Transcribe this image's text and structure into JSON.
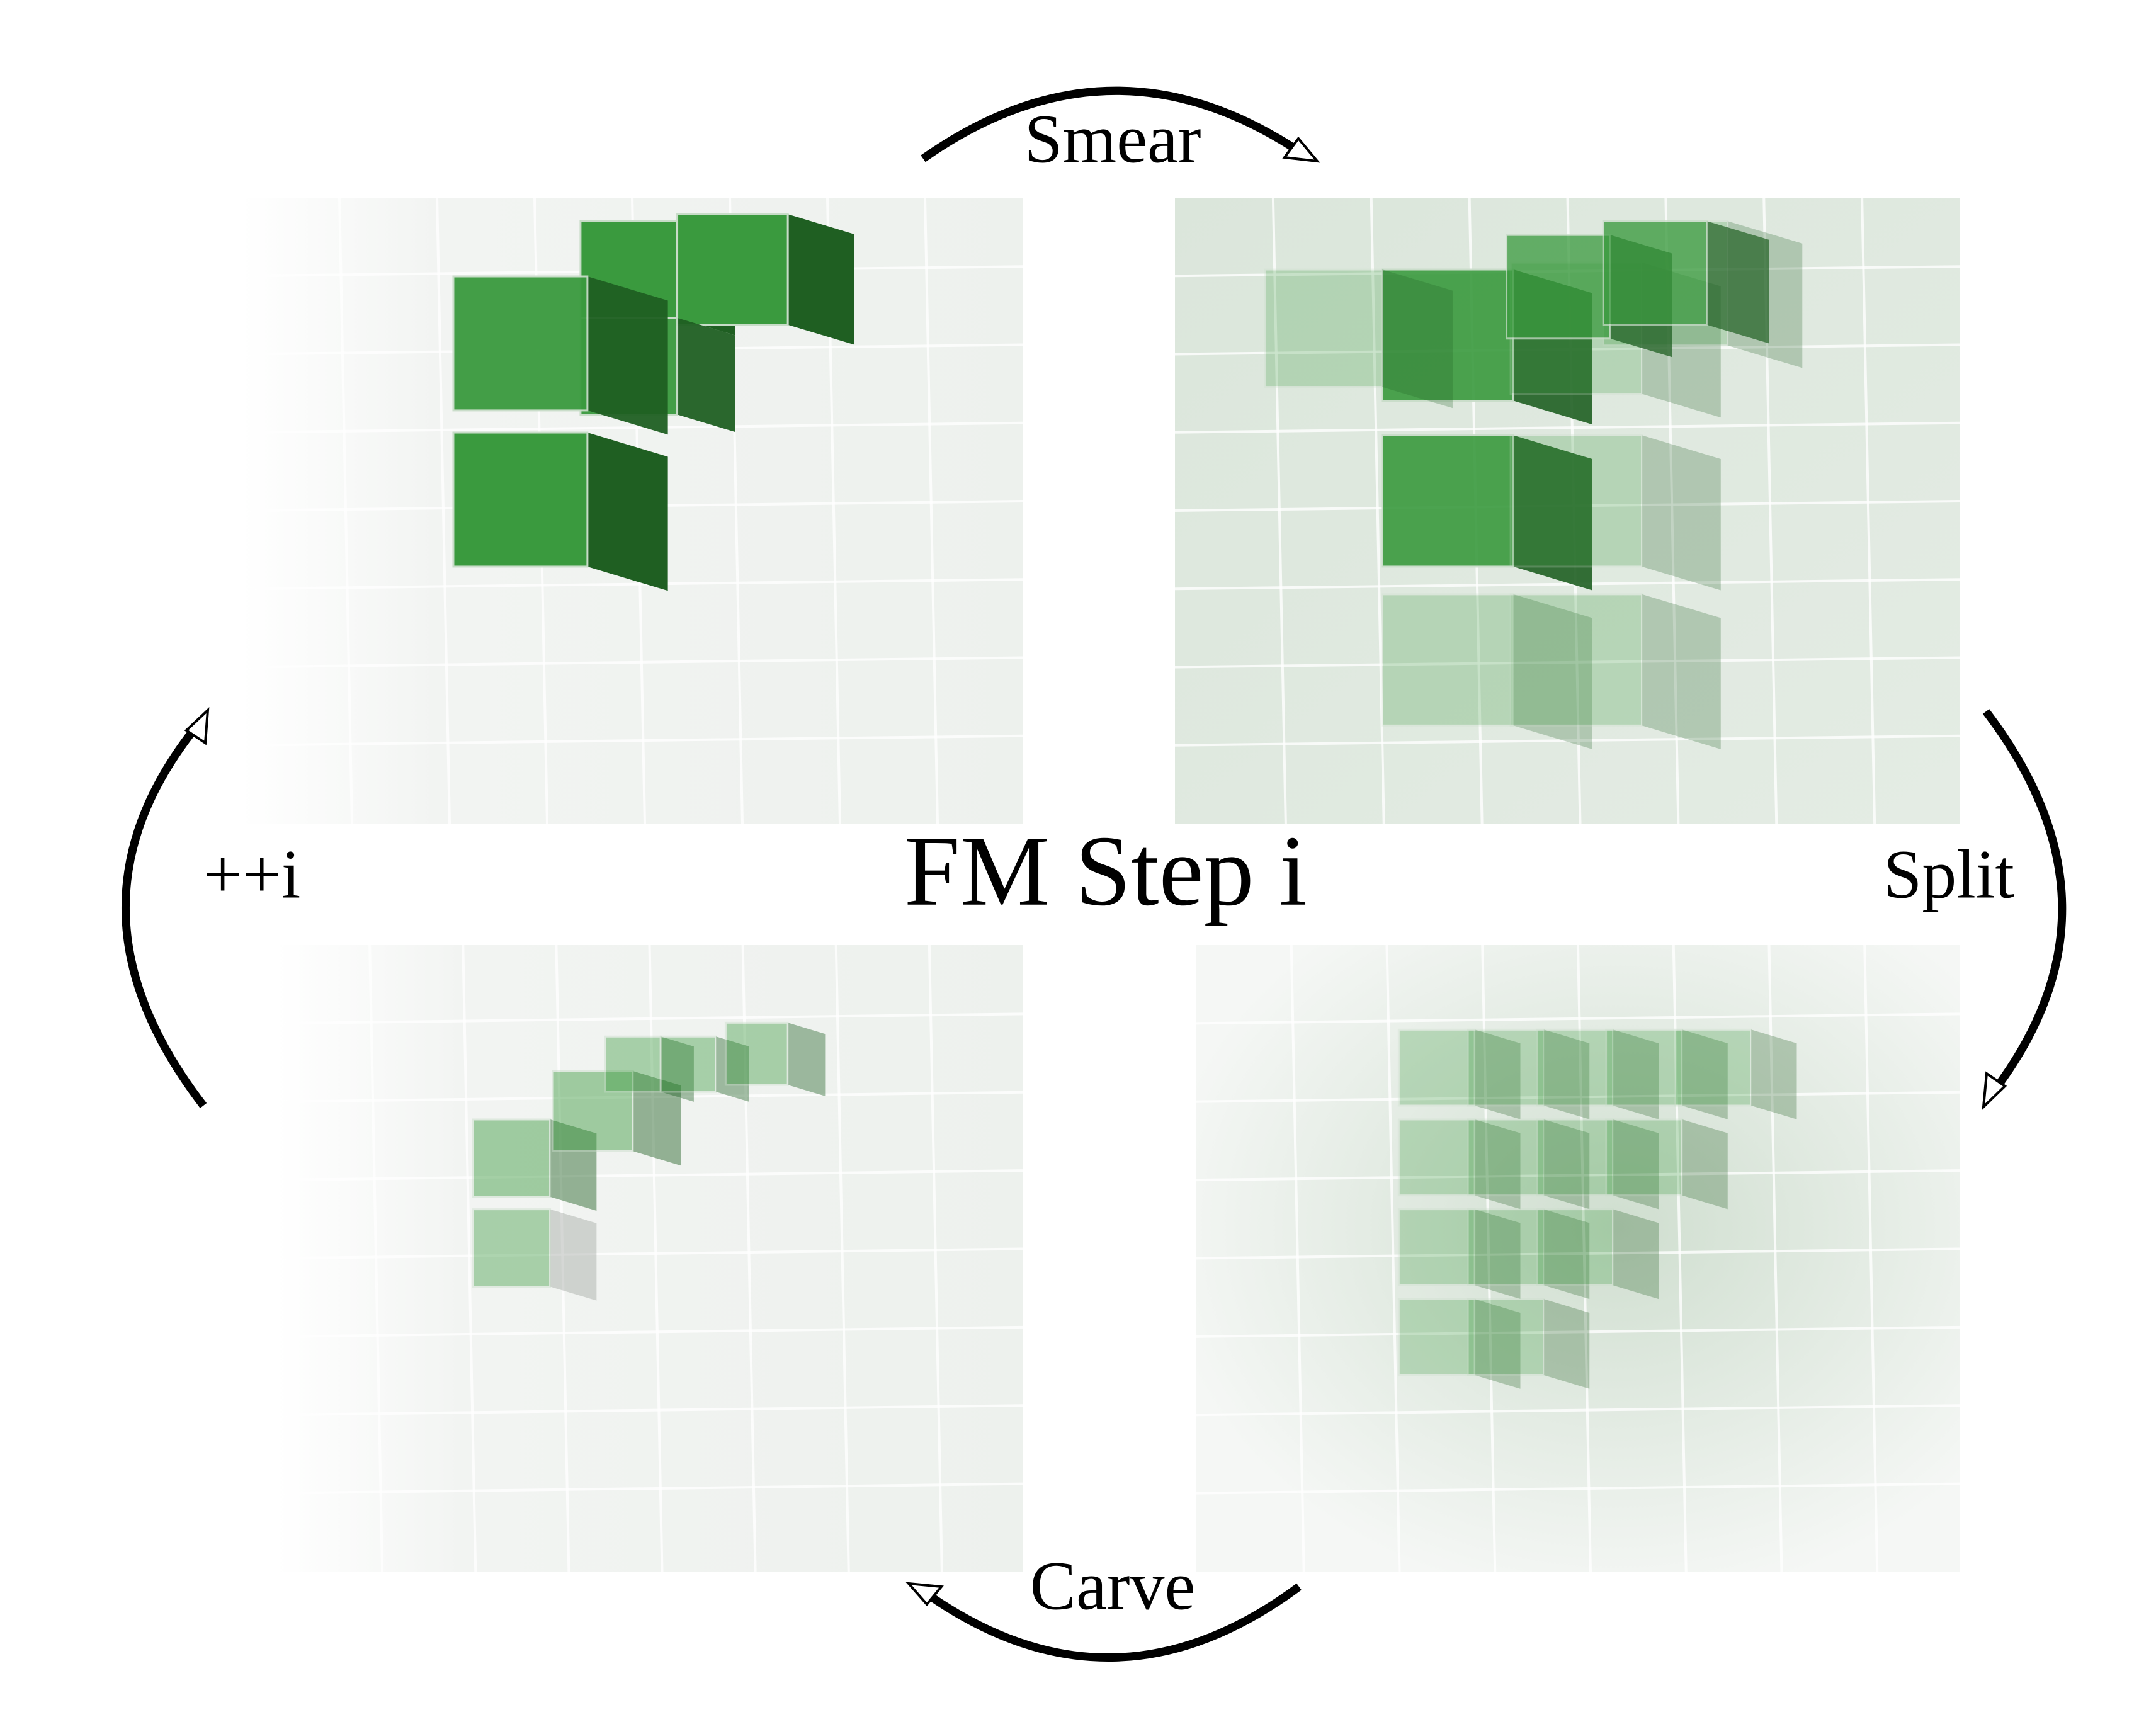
{
  "labels": {
    "smear": "Smear",
    "split": "Split",
    "carve": "Carve",
    "increment": "++i",
    "center": "FM Step i"
  }
}
